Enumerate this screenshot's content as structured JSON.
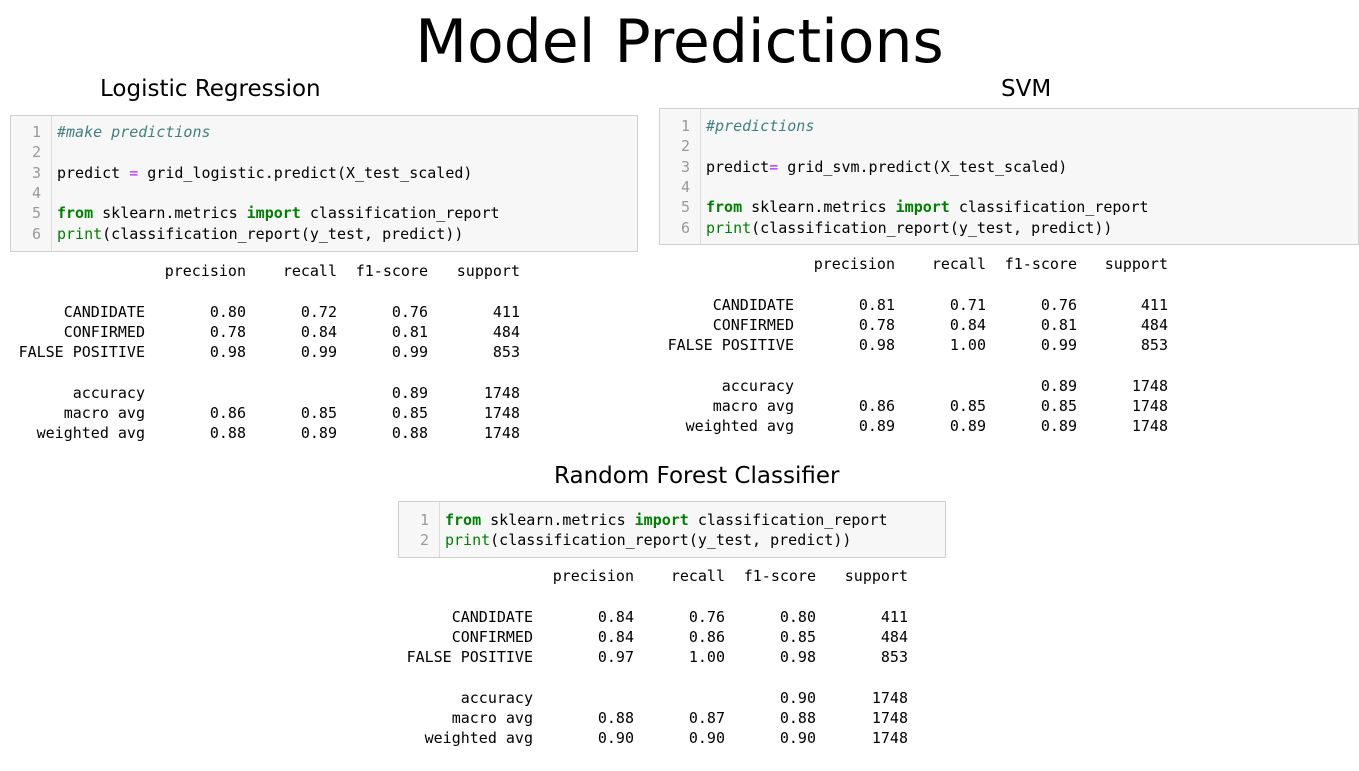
{
  "page_title": "Model Predictions",
  "panels": [
    {
      "title": "Logistic Regression",
      "code": [
        [
          {
            "t": "#make predictions",
            "c": "c"
          }
        ],
        [],
        [
          {
            "t": "predict "
          },
          {
            "t": "=",
            "c": "o"
          },
          {
            "t": " grid_logistic.predict(X_test_scaled)"
          }
        ],
        [],
        [
          {
            "t": "from",
            "c": "k"
          },
          {
            "t": " sklearn.metrics "
          },
          {
            "t": "import",
            "c": "k"
          },
          {
            "t": " classification_report"
          }
        ],
        [
          {
            "t": "print",
            "c": "b"
          },
          {
            "t": "(classification_report(y_test, predict))"
          }
        ]
      ],
      "report": {
        "header": [
          "precision",
          "recall",
          "f1-score",
          "support"
        ],
        "rows": [
          {
            "label": "CANDIDATE",
            "values": [
              "0.80",
              "0.72",
              "0.76",
              "411"
            ]
          },
          {
            "label": "CONFIRMED",
            "values": [
              "0.78",
              "0.84",
              "0.81",
              "484"
            ]
          },
          {
            "label": "FALSE POSITIVE",
            "values": [
              "0.98",
              "0.99",
              "0.99",
              "853"
            ]
          }
        ],
        "summary": [
          {
            "label": "accuracy",
            "values": [
              "",
              "",
              "0.89",
              "1748"
            ]
          },
          {
            "label": "macro avg",
            "values": [
              "0.86",
              "0.85",
              "0.85",
              "1748"
            ]
          },
          {
            "label": "weighted avg",
            "values": [
              "0.88",
              "0.89",
              "0.88",
              "1748"
            ]
          }
        ]
      }
    },
    {
      "title": "SVM",
      "code": [
        [
          {
            "t": "#predictions",
            "c": "c"
          }
        ],
        [],
        [
          {
            "t": "predict"
          },
          {
            "t": "=",
            "c": "o"
          },
          {
            "t": " grid_svm.predict(X_test_scaled)"
          }
        ],
        [],
        [
          {
            "t": "from",
            "c": "k"
          },
          {
            "t": " sklearn.metrics "
          },
          {
            "t": "import",
            "c": "k"
          },
          {
            "t": " classification_report"
          }
        ],
        [
          {
            "t": "print",
            "c": "b"
          },
          {
            "t": "(classification_report(y_test, predict))"
          }
        ]
      ],
      "report": {
        "header": [
          "precision",
          "recall",
          "f1-score",
          "support"
        ],
        "rows": [
          {
            "label": "CANDIDATE",
            "values": [
              "0.81",
              "0.71",
              "0.76",
              "411"
            ]
          },
          {
            "label": "CONFIRMED",
            "values": [
              "0.78",
              "0.84",
              "0.81",
              "484"
            ]
          },
          {
            "label": "FALSE POSITIVE",
            "values": [
              "0.98",
              "1.00",
              "0.99",
              "853"
            ]
          }
        ],
        "summary": [
          {
            "label": "accuracy",
            "values": [
              "",
              "",
              "0.89",
              "1748"
            ]
          },
          {
            "label": "macro avg",
            "values": [
              "0.86",
              "0.85",
              "0.85",
              "1748"
            ]
          },
          {
            "label": "weighted avg",
            "values": [
              "0.89",
              "0.89",
              "0.89",
              "1748"
            ]
          }
        ]
      }
    },
    {
      "title": "Random Forest Classifier",
      "code": [
        [
          {
            "t": "from",
            "c": "k"
          },
          {
            "t": " sklearn.metrics "
          },
          {
            "t": "import",
            "c": "k"
          },
          {
            "t": " classification_report"
          }
        ],
        [
          {
            "t": "print",
            "c": "b"
          },
          {
            "t": "(classification_report(y_test, predict))"
          }
        ]
      ],
      "report": {
        "header": [
          "precision",
          "recall",
          "f1-score",
          "support"
        ],
        "rows": [
          {
            "label": "CANDIDATE",
            "values": [
              "0.84",
              "0.76",
              "0.80",
              "411"
            ]
          },
          {
            "label": "CONFIRMED",
            "values": [
              "0.84",
              "0.86",
              "0.85",
              "484"
            ]
          },
          {
            "label": "FALSE POSITIVE",
            "values": [
              "0.97",
              "1.00",
              "0.98",
              "853"
            ]
          }
        ],
        "summary": [
          {
            "label": "accuracy",
            "values": [
              "",
              "",
              "0.90",
              "1748"
            ]
          },
          {
            "label": "macro avg",
            "values": [
              "0.88",
              "0.87",
              "0.88",
              "1748"
            ]
          },
          {
            "label": "weighted avg",
            "values": [
              "0.90",
              "0.90",
              "0.90",
              "1748"
            ]
          }
        ]
      }
    }
  ]
}
